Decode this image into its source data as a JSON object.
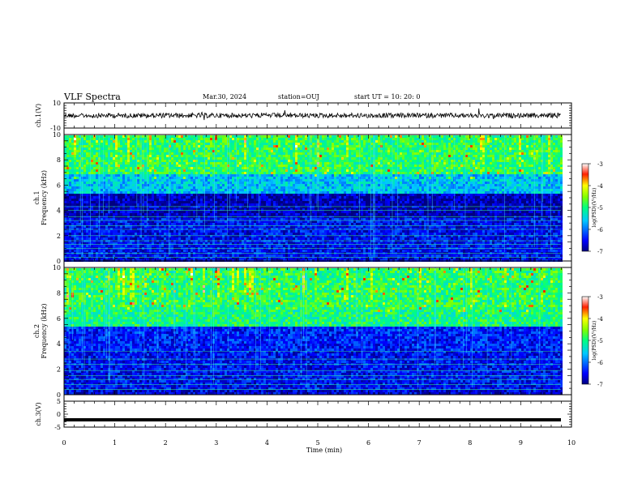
{
  "header": {
    "title": "VLF Spectra",
    "date": "Mar.30, 2024",
    "station": "station=OUJ",
    "start_ut": "start UT = 10: 20: 0"
  },
  "chart_data": [
    {
      "type": "line",
      "panel": "ch1-waveform",
      "ylabel": "ch.1(V)",
      "ylim": [
        -10,
        10
      ],
      "yticks": [
        "10",
        "-10"
      ],
      "xlim": [
        0,
        10
      ],
      "series": [
        {
          "description_level_mean": 0.0,
          "noise_amplitude": 1.5
        }
      ],
      "line_color": "#000000"
    },
    {
      "type": "heatmap",
      "panel": "ch1-spectrogram",
      "ylabel_top": "ch.1",
      "ylabel": "Frequency (kHz)",
      "ylim": [
        0,
        10
      ],
      "yticks": [
        "0",
        "2",
        "4",
        "6",
        "8",
        "10"
      ],
      "xlim": [
        0,
        10
      ],
      "colorbar": {
        "label": "log(PSD)(V²/Hz)",
        "ticks": [
          "-3",
          "-4",
          "-5",
          "-6",
          "-7"
        ],
        "range": [
          -7,
          -3
        ]
      },
      "bands_kHz": [
        {
          "from": 0,
          "to": 0.5,
          "level": -6.6
        },
        {
          "from": 0.5,
          "to": 3.5,
          "level": -6.5
        },
        {
          "from": 3.5,
          "to": 5.5,
          "level": -6.8
        },
        {
          "from": 5.5,
          "to": 7.0,
          "level": -5.6
        },
        {
          "from": 7.0,
          "to": 10,
          "level": -4.9
        }
      ],
      "lines_kHz": [
        0.3,
        0.6,
        1.0,
        1.3,
        1.6,
        2.0,
        2.5,
        2.8,
        3.2,
        3.5,
        4.0,
        4.3
      ]
    },
    {
      "type": "heatmap",
      "panel": "ch2-spectrogram",
      "ylabel_top": "ch.2",
      "ylabel": "Frequency (kHz)",
      "ylim": [
        0,
        10
      ],
      "yticks": [
        "0",
        "2",
        "4",
        "6",
        "8",
        "10"
      ],
      "xlim": [
        0,
        10
      ],
      "colorbar": {
        "label": "log(PSD)(V²/Hz)",
        "ticks": [
          "-3",
          "-4",
          "-5",
          "-6",
          "-7"
        ],
        "range": [
          -7,
          -3
        ]
      },
      "bands_kHz": [
        {
          "from": 0,
          "to": 0.5,
          "level": -6.6
        },
        {
          "from": 0.5,
          "to": 3.5,
          "level": -6.5
        },
        {
          "from": 3.5,
          "to": 5.5,
          "level": -6.4
        },
        {
          "from": 5.5,
          "to": 7.0,
          "level": -5.0
        },
        {
          "from": 7.0,
          "to": 10,
          "level": -4.9
        }
      ],
      "lines_kHz": [
        0.4,
        0.8,
        1.2,
        1.5,
        1.9,
        2.4,
        2.8,
        3.4
      ]
    },
    {
      "type": "line",
      "panel": "ch3-waveform",
      "ylabel": "ch.3(V)",
      "ylim": [
        -5,
        5
      ],
      "yticks": [
        "5",
        "0",
        "-5"
      ],
      "xlim": [
        0,
        10
      ],
      "series": [
        {
          "constant_value": -2.2
        }
      ],
      "line_color": "#000000"
    }
  ],
  "x_axis": {
    "label": "Time (min)",
    "ticks": [
      "0",
      "1",
      "2",
      "3",
      "4",
      "5",
      "6",
      "7",
      "8",
      "9",
      "10"
    ]
  }
}
